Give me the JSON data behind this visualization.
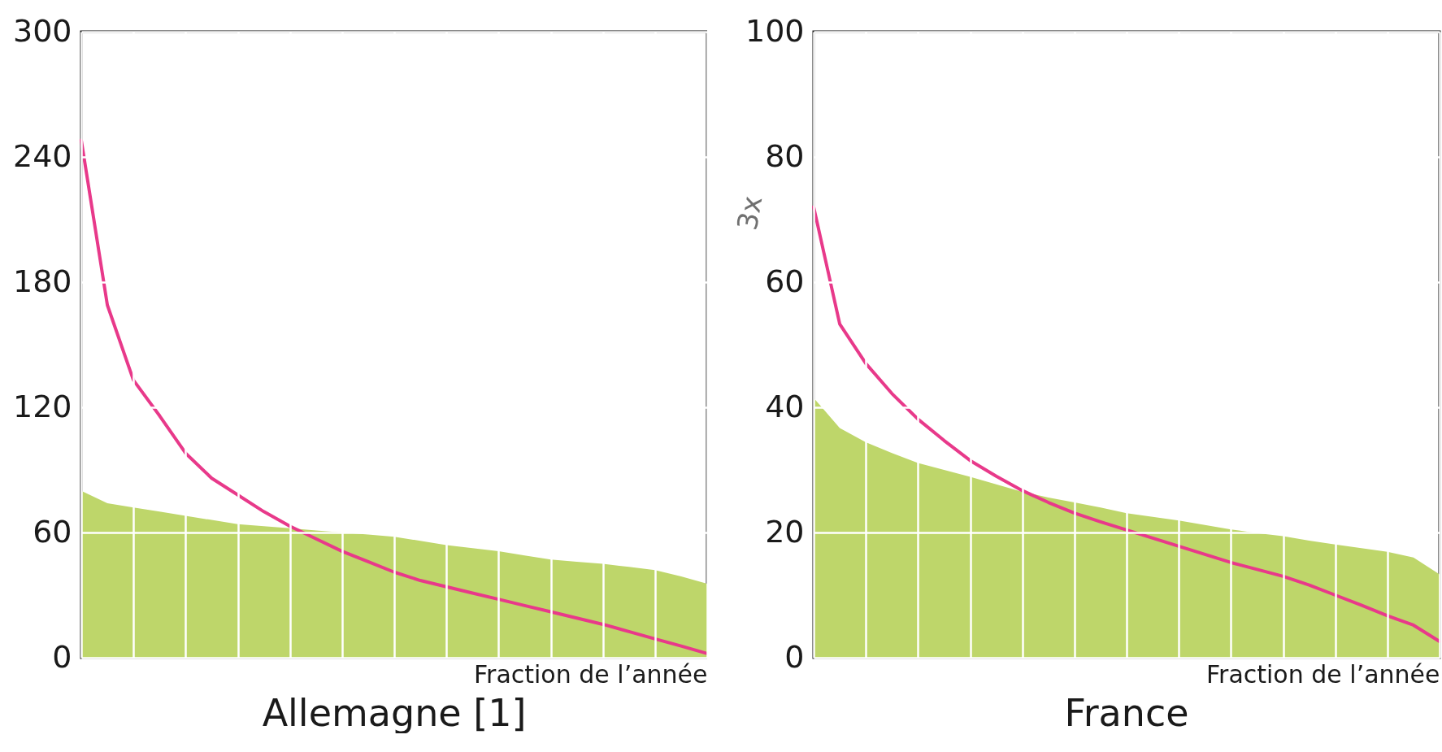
{
  "chart_data": [
    {
      "type": "area",
      "title": "Allemagne [1]",
      "xlabel": "Fraction de l’année",
      "categories": [
        null,
        null,
        null,
        null,
        null,
        null,
        null,
        null,
        null,
        null,
        null,
        null,
        null,
        null,
        null,
        null,
        null,
        null,
        null,
        null,
        null,
        null,
        null,
        null,
        null
      ],
      "ylim": [
        0,
        300
      ],
      "yticks": [
        0,
        60,
        120,
        180,
        240,
        300
      ],
      "grid": true,
      "tick_labels": "y",
      "series": [
        {
          "color": "#bed66a",
          "values": [
            80,
            74,
            72,
            70,
            68,
            66,
            64,
            63,
            62,
            61,
            60,
            59,
            58,
            56,
            54,
            52.5,
            51,
            49,
            47,
            46,
            45,
            43.5,
            42,
            39,
            35.5
          ]
        },
        {
          "type": "line",
          "color": "#e8398a",
          "values": [
            248,
            169,
            133,
            116,
            98,
            86,
            78,
            70,
            63,
            57,
            51,
            46,
            41,
            37,
            34,
            31,
            28,
            25,
            22,
            19,
            16,
            12.5,
            9,
            5.6,
            2
          ]
        }
      ]
    },
    {
      "type": "area",
      "title": "France",
      "xlabel": "Fraction de l’année",
      "categories": [
        null,
        null,
        null,
        null,
        null,
        null,
        null,
        null,
        null,
        null,
        null,
        null,
        null,
        null,
        null,
        null,
        null,
        null,
        null,
        null,
        null,
        null,
        null,
        null,
        null
      ],
      "ylim": [
        0,
        100
      ],
      "yticks": [
        0,
        20,
        40,
        60,
        80,
        100
      ],
      "grid": true,
      "tick_labels": "y",
      "annotations": [
        "3x"
      ],
      "series": [
        {
          "color": "#bed66a",
          "values": [
            41.5,
            36.7,
            34.4,
            32.7,
            31.1,
            30,
            28.9,
            27.7,
            26.5,
            25.6,
            24.8,
            24,
            23.1,
            22.5,
            21.9,
            21.2,
            20.5,
            19.9,
            19.4,
            18.7,
            18.1,
            17.5,
            16.9,
            16,
            13.3
          ]
        },
        {
          "type": "line",
          "color": "#e8398a",
          "values": [
            72,
            53.3,
            47,
            42.2,
            38.1,
            34.7,
            31.5,
            29,
            26.7,
            24.8,
            23.1,
            21.7,
            20.4,
            19.1,
            17.8,
            16.5,
            15.2,
            14.1,
            13,
            11.6,
            10,
            8.4,
            6.7,
            5.2,
            2.6
          ]
        }
      ]
    }
  ]
}
